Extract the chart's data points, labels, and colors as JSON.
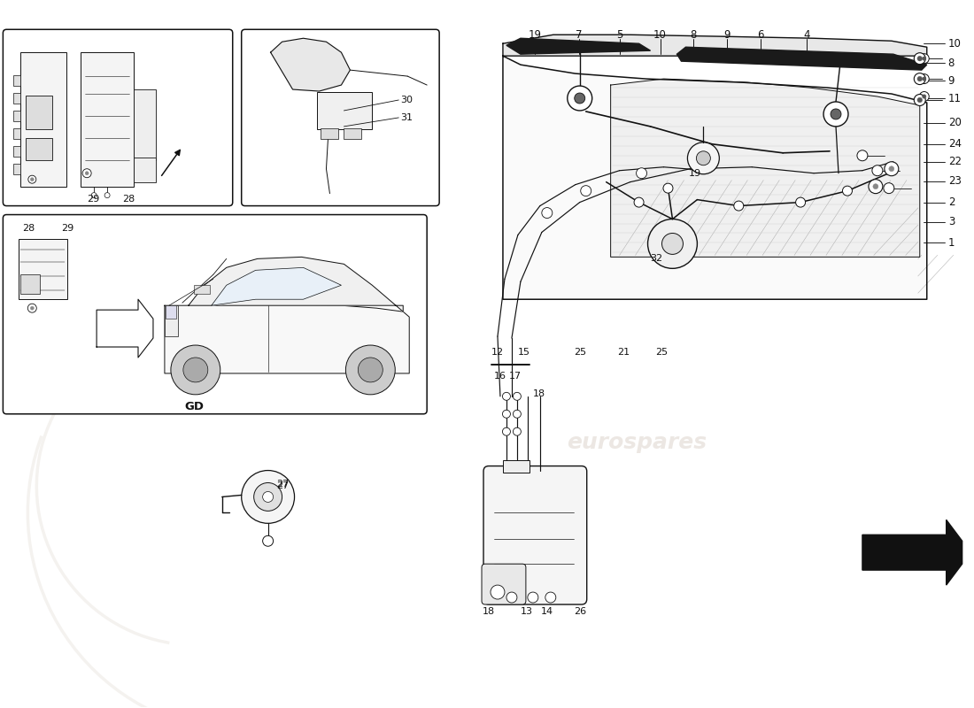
{
  "bg": "#ffffff",
  "lc": "#111111",
  "tc": "#111111",
  "wm": "#ddd5cc",
  "fig_w": 11.0,
  "fig_h": 8.0,
  "dpi": 100,
  "top_labels": [
    [
      "19",
      6.04,
      7.62
    ],
    [
      "7",
      6.54,
      7.62
    ],
    [
      "5",
      7.0,
      7.62
    ],
    [
      "10",
      7.46,
      7.62
    ],
    [
      "8",
      7.84,
      7.62
    ],
    [
      "9",
      8.22,
      7.62
    ],
    [
      "6",
      8.6,
      7.62
    ],
    [
      "4",
      9.12,
      7.62
    ]
  ],
  "right_labels": [
    [
      "10",
      10.72,
      7.52
    ],
    [
      "8",
      10.72,
      7.3
    ],
    [
      "9",
      10.72,
      7.1
    ],
    [
      "11",
      10.72,
      6.9
    ],
    [
      "20",
      10.72,
      6.62
    ],
    [
      "24",
      10.72,
      6.38
    ],
    [
      "22",
      10.72,
      6.18
    ],
    [
      "23",
      10.72,
      5.96
    ],
    [
      "2",
      10.72,
      5.72
    ],
    [
      "3",
      10.72,
      5.5
    ],
    [
      "1",
      10.72,
      5.26
    ]
  ]
}
